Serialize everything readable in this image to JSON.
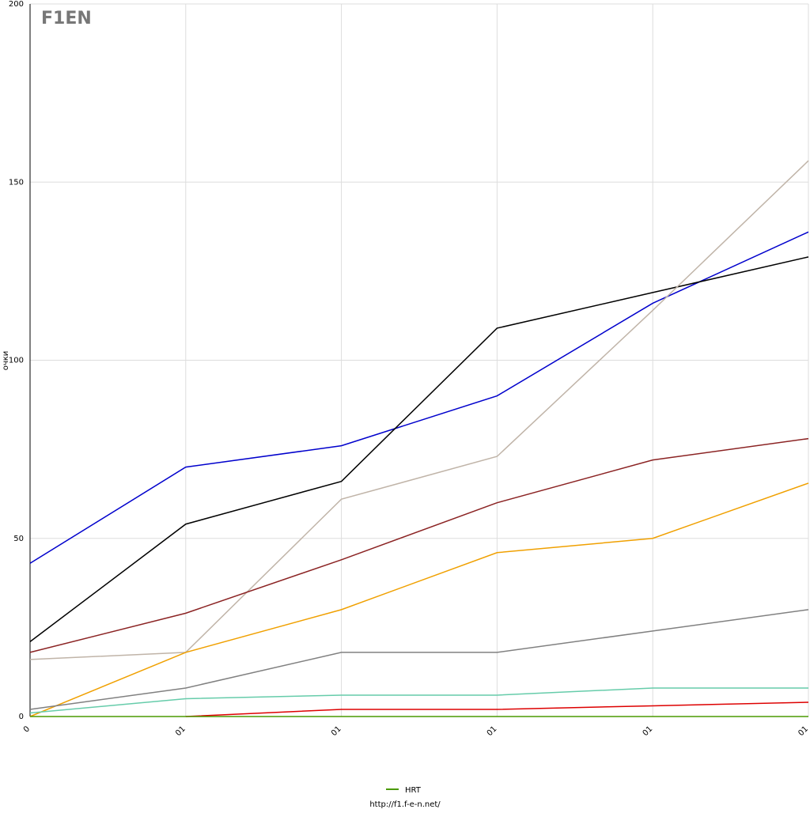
{
  "chart_data": {
    "type": "line",
    "logo": "F1EN",
    "y_label": "очки",
    "categories": [
      "0",
      "01",
      "01",
      "01",
      "01",
      "01"
    ],
    "ylim": [
      0,
      200
    ],
    "yticks": [
      0,
      50,
      100,
      150,
      200
    ],
    "grid": true,
    "series": [
      {
        "color": "#0000cc",
        "values": [
          43,
          70,
          76,
          90,
          116,
          136
        ]
      },
      {
        "color": "#000000",
        "values": [
          21,
          54,
          66,
          109,
          119,
          129
        ]
      },
      {
        "color": "#c0b4a8",
        "values": [
          16,
          18,
          61,
          73,
          114,
          156
        ]
      },
      {
        "color": "#8b2323",
        "values": [
          18,
          29,
          44,
          60,
          72,
          78
        ]
      },
      {
        "color": "#f0a000",
        "values": [
          0,
          18,
          30,
          46,
          50,
          65.5
        ]
      },
      {
        "color": "#808080",
        "values": [
          2,
          8,
          18,
          18,
          24,
          30
        ]
      },
      {
        "color": "#66ccaa",
        "values": [
          1,
          5,
          6,
          6,
          8,
          8
        ]
      },
      {
        "color": "#dd0000",
        "values": [
          null,
          0,
          2,
          2,
          3,
          4
        ]
      },
      {
        "name": "HRT",
        "color": "#4a9a00",
        "values": [
          0,
          0,
          0,
          0,
          0,
          0
        ]
      }
    ],
    "footer": "http://f1.f-e-n.net/"
  }
}
